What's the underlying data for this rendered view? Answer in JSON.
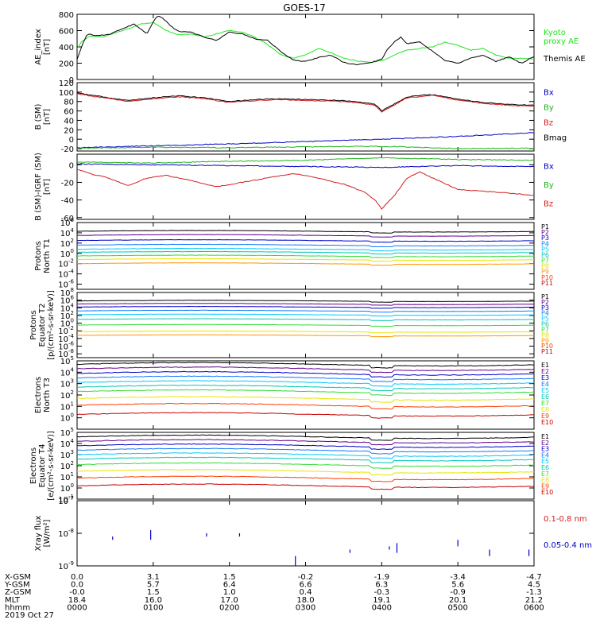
{
  "title": "GOES-17",
  "chart_data": [
    {
      "type": "line",
      "ylabel": "AE_index\n[nT]",
      "ylim": [
        0,
        800
      ],
      "yticks": [
        0,
        200,
        400,
        600,
        800
      ],
      "legend": [
        {
          "label": "Kyoto\nproxy AE",
          "color": "#1ee61e"
        },
        {
          "label": "Themis AE",
          "color": "#000000"
        }
      ],
      "series": [
        {
          "name": "Kyoto proxy AE",
          "color": "#1ee61e",
          "x": [
            0,
            4,
            10,
            20,
            30,
            40,
            50,
            60,
            70,
            80,
            90,
            100,
            110,
            120,
            130,
            140,
            150,
            160,
            170,
            180,
            190,
            200,
            210,
            220,
            230,
            240,
            250,
            260,
            270,
            280,
            290,
            300,
            310,
            320,
            330,
            340,
            350,
            360
          ],
          "y": [
            380,
            470,
            530,
            520,
            570,
            620,
            680,
            700,
            600,
            550,
            560,
            520,
            560,
            600,
            580,
            520,
            430,
            310,
            260,
            300,
            380,
            330,
            260,
            230,
            210,
            230,
            300,
            360,
            380,
            400,
            460,
            420,
            360,
            380,
            300,
            260,
            260,
            250
          ]
        },
        {
          "name": "Themis AE",
          "color": "#000000",
          "x": [
            0,
            4,
            8,
            15,
            25,
            35,
            45,
            55,
            62,
            65,
            70,
            75,
            80,
            90,
            100,
            110,
            120,
            130,
            140,
            150,
            160,
            170,
            180,
            190,
            200,
            210,
            220,
            230,
            240,
            245,
            250,
            255,
            260,
            270,
            275,
            280,
            290,
            300,
            310,
            320,
            330,
            340,
            350,
            360
          ],
          "y": [
            250,
            420,
            560,
            540,
            550,
            620,
            680,
            560,
            760,
            780,
            720,
            640,
            590,
            580,
            520,
            480,
            580,
            560,
            500,
            480,
            350,
            240,
            220,
            270,
            300,
            210,
            180,
            200,
            250,
            380,
            460,
            520,
            440,
            460,
            400,
            350,
            230,
            200,
            260,
            300,
            220,
            280,
            200,
            280
          ]
        }
      ]
    },
    {
      "type": "line",
      "ylabel": "B (SM)\n[nT]",
      "ylim": [
        -25,
        120
      ],
      "yticks": [
        -20,
        0,
        20,
        40,
        60,
        80,
        100,
        120
      ],
      "legend": [
        {
          "label": "Bx",
          "color": "#0000c8"
        },
        {
          "label": "By",
          "color": "#1eb41e"
        },
        {
          "label": "Bz",
          "color": "#d21e1e"
        },
        {
          "label": "Bmag",
          "color": "#000000"
        }
      ],
      "series": [
        {
          "name": "Bmag",
          "color": "#000000",
          "x": [
            0,
            20,
            40,
            60,
            80,
            100,
            120,
            140,
            160,
            180,
            200,
            220,
            235,
            240,
            250,
            260,
            280,
            300,
            320,
            340,
            360
          ],
          "y": [
            98,
            90,
            82,
            88,
            92,
            88,
            80,
            84,
            86,
            84,
            83,
            80,
            74,
            60,
            75,
            90,
            95,
            85,
            78,
            74,
            72
          ]
        },
        {
          "name": "Bz",
          "color": "#d21e1e",
          "x": [
            0,
            20,
            40,
            60,
            80,
            100,
            120,
            140,
            160,
            180,
            200,
            220,
            235,
            240,
            250,
            260,
            280,
            300,
            320,
            340,
            360
          ],
          "y": [
            96,
            88,
            80,
            86,
            90,
            86,
            78,
            82,
            84,
            82,
            81,
            78,
            72,
            57,
            73,
            88,
            93,
            83,
            76,
            72,
            70
          ]
        },
        {
          "name": "Bx",
          "color": "#0000c8",
          "x": [
            0,
            60,
            120,
            180,
            240,
            300,
            360
          ],
          "y": [
            -18,
            -14,
            -10,
            -5,
            0,
            6,
            14
          ]
        },
        {
          "name": "By",
          "color": "#1eb41e",
          "x": [
            0,
            60,
            120,
            180,
            240,
            300,
            360
          ],
          "y": [
            -19,
            -17,
            -18,
            -16,
            -15,
            -20,
            -19
          ]
        }
      ]
    },
    {
      "type": "line",
      "ylabel": "B (SM)-IGRF (SM)\n[nT]",
      "ylim": [
        -62,
        12
      ],
      "yticks": [
        -60,
        -40,
        -20,
        0
      ],
      "legend": [
        {
          "label": "Bx",
          "color": "#0000c8"
        },
        {
          "label": "By",
          "color": "#1eb41e"
        },
        {
          "label": "Bz",
          "color": "#d21e1e"
        }
      ],
      "series": [
        {
          "name": "By",
          "color": "#1eb41e",
          "x": [
            0,
            60,
            120,
            180,
            240,
            300,
            360
          ],
          "y": [
            3,
            2,
            4,
            5,
            8,
            6,
            5
          ]
        },
        {
          "name": "Bx",
          "color": "#0000c8",
          "x": [
            0,
            60,
            120,
            180,
            240,
            300,
            360
          ],
          "y": [
            1,
            0,
            -1,
            -2,
            -3,
            -1,
            -2
          ]
        },
        {
          "name": "Bz",
          "color": "#d21e1e",
          "x": [
            0,
            10,
            25,
            40,
            55,
            70,
            90,
            110,
            130,
            150,
            170,
            190,
            210,
            225,
            235,
            240,
            250,
            260,
            270,
            280,
            300,
            320,
            340,
            360
          ],
          "y": [
            -5,
            -10,
            -15,
            -24,
            -15,
            -12,
            -18,
            -25,
            -20,
            -15,
            -10,
            -15,
            -22,
            -30,
            -40,
            -50,
            -35,
            -15,
            -8,
            -15,
            -28,
            -30,
            -32,
            -35
          ]
        }
      ]
    },
    {
      "type": "line",
      "ylabel": "Protons\nNorth T1",
      "ylim_exp": [
        -7,
        6
      ],
      "ytick_exps": [
        -6,
        -4,
        -2,
        0,
        2,
        4,
        6
      ],
      "legend": [
        {
          "label": "P1",
          "color": "#000000"
        },
        {
          "label": "P2",
          "color": "#64008c"
        },
        {
          "label": "P3",
          "color": "#0000c8"
        },
        {
          "label": "P4",
          "color": "#1478ff"
        },
        {
          "label": "P5",
          "color": "#00c8ff"
        },
        {
          "label": "P6",
          "color": "#00c8b4"
        },
        {
          "label": "P7",
          "color": "#32dc32"
        },
        {
          "label": "P8",
          "color": "#e6e600"
        },
        {
          "label": "P9",
          "color": "#ff9600"
        },
        {
          "label": "P10",
          "color": "#ff3c00"
        },
        {
          "label": "P11",
          "color": "#c80000"
        }
      ],
      "levels_exp": [
        4.3,
        3.5,
        2.5,
        1.6,
        0.8,
        0.2,
        -0.5,
        -1.2,
        -2.0
      ]
    },
    {
      "type": "line",
      "ylabel": "Protons\nEquator T2\n[p/(cm²-s-sr-keV)]",
      "ylim_exp": [
        -9,
        8
      ],
      "ytick_exps": [
        -8,
        -6,
        -4,
        -2,
        0,
        2,
        4,
        6,
        8
      ],
      "legend": [
        {
          "label": "P1",
          "color": "#000000"
        },
        {
          "label": "P2",
          "color": "#64008c"
        },
        {
          "label": "P3",
          "color": "#0000c8"
        },
        {
          "label": "P4",
          "color": "#1478ff"
        },
        {
          "label": "P5",
          "color": "#00c8ff"
        },
        {
          "label": "P6",
          "color": "#00c8b4"
        },
        {
          "label": "P7",
          "color": "#32dc32"
        },
        {
          "label": "P8",
          "color": "#e6e600"
        },
        {
          "label": "P9",
          "color": "#ff9600"
        },
        {
          "label": "P10",
          "color": "#ff3c00"
        },
        {
          "label": "P11",
          "color": "#c80000"
        }
      ],
      "levels_exp": [
        5.8,
        5.0,
        4.2,
        3.2,
        2.2,
        1.0,
        -0.5,
        -2.2,
        -3.2
      ]
    },
    {
      "type": "line",
      "ylabel": "Electrons\nNorth T3",
      "ylim_exp": [
        -1,
        5
      ],
      "ytick_exps": [
        0,
        1,
        2,
        3,
        4,
        5
      ],
      "legend": [
        {
          "label": "E1",
          "color": "#000000"
        },
        {
          "label": "E2",
          "color": "#64008c"
        },
        {
          "label": "E3",
          "color": "#0000c8"
        },
        {
          "label": "E4",
          "color": "#1478ff"
        },
        {
          "label": "E5",
          "color": "#00c8ff"
        },
        {
          "label": "E6",
          "color": "#00c8b4"
        },
        {
          "label": "E7",
          "color": "#32dc32"
        },
        {
          "label": "E8",
          "color": "#e6e600"
        },
        {
          "label": "E9",
          "color": "#ff3c00"
        },
        {
          "label": "E10",
          "color": "#c80000"
        }
      ],
      "levels_exp": [
        4.7,
        4.3,
        3.9,
        3.5,
        3.1,
        2.7,
        2.3,
        1.7,
        1.1,
        0.3
      ]
    },
    {
      "type": "line",
      "ylabel": "Electrons\nEquator T4\n[e/(cm²-s-sr-keV)]",
      "ylim_exp": [
        -1,
        5
      ],
      "ytick_exps": [
        -1,
        0,
        1,
        2,
        3,
        4,
        5
      ],
      "legend": [
        {
          "label": "E1",
          "color": "#000000"
        },
        {
          "label": "E2",
          "color": "#64008c"
        },
        {
          "label": "E3",
          "color": "#0000c8"
        },
        {
          "label": "E4",
          "color": "#1478ff"
        },
        {
          "label": "E5",
          "color": "#00c8ff"
        },
        {
          "label": "E6",
          "color": "#00c8b4"
        },
        {
          "label": "E7",
          "color": "#32dc32"
        },
        {
          "label": "E8",
          "color": "#e6e600"
        },
        {
          "label": "E9",
          "color": "#ff3c00"
        },
        {
          "label": "E10",
          "color": "#c80000"
        }
      ],
      "levels_exp": [
        4.6,
        4.2,
        3.8,
        3.4,
        3.0,
        2.6,
        2.1,
        1.5,
        0.9,
        0.2
      ]
    },
    {
      "type": "scatter",
      "ylabel": "Xray flux\n[W/m²]",
      "ylim_exp": [
        -9,
        -7
      ],
      "ytick_exps": [
        -9,
        -8,
        -7
      ],
      "legend": [
        {
          "label": "0.1-0.8 nm",
          "color": "#d21e1e"
        },
        {
          "label": "0.05-0.4 nm",
          "color": "#0000c8"
        }
      ],
      "segments": [
        [
          28,
          -8.1,
          28,
          -8.2
        ],
        [
          58,
          -7.9,
          58,
          -8.2
        ],
        [
          102,
          -8.0,
          102,
          -8.1
        ],
        [
          128,
          -8.0,
          128,
          -8.1
        ],
        [
          172,
          -8.7,
          172,
          -9.0
        ],
        [
          215,
          -8.5,
          215,
          -8.6
        ],
        [
          246,
          -8.4,
          246,
          -8.5
        ],
        [
          252,
          -8.3,
          252,
          -8.6
        ],
        [
          300,
          -8.2,
          300,
          -8.4
        ],
        [
          325,
          -8.5,
          325,
          -8.7
        ],
        [
          356,
          -8.5,
          356,
          -8.7
        ]
      ]
    }
  ],
  "axis": {
    "rows": [
      {
        "label": "X-GSM",
        "values": [
          "0.0",
          "3.1",
          "1.5",
          "-0.2",
          "-1.9",
          "-3.4",
          "-4.7"
        ]
      },
      {
        "label": "Y-GSM",
        "values": [
          "0.0",
          "5.7",
          "6.4",
          "6.6",
          "6.3",
          "5.6",
          "4.5"
        ]
      },
      {
        "label": "Z-GSM",
        "values": [
          "-0.0",
          "1.5",
          "1.0",
          "0.4",
          "-0.3",
          "-0.9",
          "-1.3"
        ]
      },
      {
        "label": "MLT",
        "values": [
          "18.4",
          "16.0",
          "17.0",
          "18.0",
          "19.1",
          "20.1",
          "21.2"
        ]
      },
      {
        "label": "hhmm",
        "values": [
          "0000",
          "0100",
          "0200",
          "0300",
          "0400",
          "0500",
          "0600"
        ]
      }
    ],
    "date": "2019 Oct 27"
  }
}
